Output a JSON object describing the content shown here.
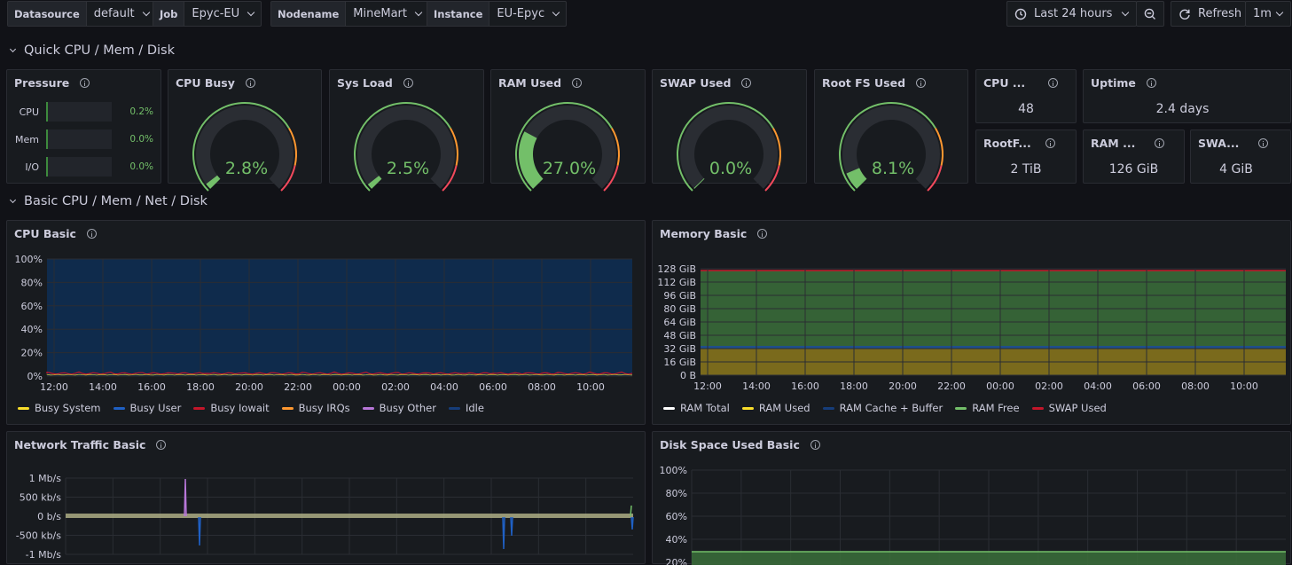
{
  "variables": [
    {
      "label": "Datasource",
      "value": "default"
    },
    {
      "label": "Job",
      "value": "Epyc-EU"
    },
    {
      "label": "Nodename",
      "value": "MineMart"
    },
    {
      "label": "Instance",
      "value": "EU-Epyc"
    }
  ],
  "toolbar": {
    "time_range": "Last 24 hours",
    "refresh_label": "Refresh",
    "refresh_interval": "1m"
  },
  "rows": {
    "quick": "Quick CPU / Mem / Disk",
    "basic": "Basic CPU / Mem / Net / Disk"
  },
  "pressure": {
    "title": "Pressure",
    "items": [
      {
        "name": "CPU",
        "value": "0.2%",
        "fraction": 0.002
      },
      {
        "name": "Mem",
        "value": "0.0%",
        "fraction": 0
      },
      {
        "name": "I/O",
        "value": "0.0%",
        "fraction": 0
      }
    ]
  },
  "gauges": [
    {
      "title": "CPU Busy",
      "value": "2.8%",
      "fraction": 0.028
    },
    {
      "title": "Sys Load",
      "value": "2.5%",
      "fraction": 0.025
    },
    {
      "title": "RAM Used",
      "value": "27.0%",
      "fraction": 0.27
    },
    {
      "title": "SWAP Used",
      "value": "0.0%",
      "fraction": 0
    },
    {
      "title": "Root FS Used",
      "value": "8.1%",
      "fraction": 0.081
    }
  ],
  "stats": {
    "cpu_cores": {
      "title": "CPU ...",
      "value": "48"
    },
    "uptime": {
      "title": "Uptime",
      "value": "2.4 days"
    },
    "rootfs": {
      "title": "RootF...",
      "value": "2 TiB"
    },
    "ram": {
      "title": "RAM ...",
      "value": "126 GiB"
    },
    "swap": {
      "title": "SWA...",
      "value": "4 GiB"
    }
  },
  "colors": {
    "green": "#73bf69",
    "yellow": "#fade2a",
    "blue": "#1f60c4",
    "red": "#f2495c",
    "orange": "#ff9830",
    "purple": "#b877d9",
    "gauge_track": "#2a2d33"
  },
  "cpu_basic": {
    "title": "CPU Basic",
    "y_ticks": [
      "100%",
      "80%",
      "60%",
      "40%",
      "20%",
      "0%"
    ],
    "x_ticks": [
      "12:00",
      "14:00",
      "16:00",
      "18:00",
      "20:00",
      "22:00",
      "00:00",
      "02:00",
      "04:00",
      "06:00",
      "08:00",
      "10:00"
    ],
    "legend": [
      {
        "name": "Busy System",
        "color": "#fade2a"
      },
      {
        "name": "Busy User",
        "color": "#1f60c4"
      },
      {
        "name": "Busy Iowait",
        "color": "#c4162a"
      },
      {
        "name": "Busy IRQs",
        "color": "#ff9830"
      },
      {
        "name": "Busy Other",
        "color": "#b877d9"
      },
      {
        "name": "Idle",
        "color": "#163d7a"
      }
    ]
  },
  "memory_basic": {
    "title": "Memory Basic",
    "y_ticks": [
      "128 GiB",
      "112 GiB",
      "96 GiB",
      "80 GiB",
      "64 GiB",
      "48 GiB",
      "32 GiB",
      "16 GiB",
      "0 B"
    ],
    "x_ticks": [
      "12:00",
      "14:00",
      "16:00",
      "18:00",
      "20:00",
      "22:00",
      "00:00",
      "02:00",
      "04:00",
      "06:00",
      "08:00",
      "10:00"
    ],
    "legend": [
      {
        "name": "RAM Total",
        "color": "#ffffff"
      },
      {
        "name": "RAM Used",
        "color": "#fade2a"
      },
      {
        "name": "RAM Cache + Buffer",
        "color": "#163d7a"
      },
      {
        "name": "RAM Free",
        "color": "#73bf69"
      },
      {
        "name": "SWAP Used",
        "color": "#c4162a"
      }
    ]
  },
  "network_basic": {
    "title": "Network Traffic Basic",
    "y_ticks": [
      "1 Mb/s",
      "500 kb/s",
      "0 b/s",
      "-500 kb/s",
      "-1 Mb/s"
    ]
  },
  "disk_basic": {
    "title": "Disk Space Used Basic",
    "y_ticks": [
      "100%",
      "80%",
      "60%",
      "40%",
      "20%"
    ]
  }
}
